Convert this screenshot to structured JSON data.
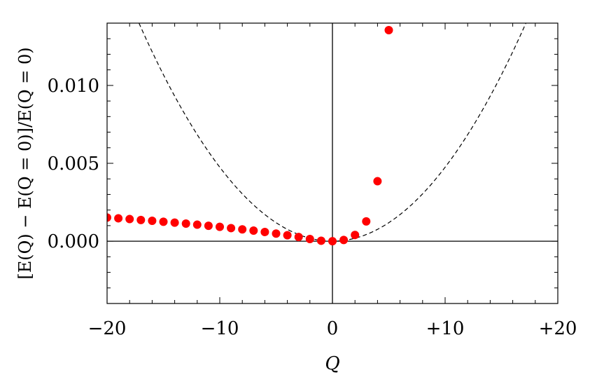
{
  "chart_data": {
    "type": "scatter",
    "xlabel": "Q",
    "ylabel": "[E(Q) − E(Q = 0)]/E(Q = 0)",
    "xlim": [
      -20,
      20
    ],
    "ylim": [
      -0.004,
      0.014
    ],
    "x_ticks": [
      -20,
      -10,
      0,
      10,
      20
    ],
    "x_tick_labels": [
      "−20",
      "−10",
      "0",
      "+10",
      "+20"
    ],
    "y_ticks": [
      0.0,
      0.005,
      0.01
    ],
    "y_tick_labels": [
      "0.000",
      "0.005",
      "0.010"
    ],
    "grid": false,
    "reference_lines": {
      "x": 0,
      "y": 0
    },
    "series": [
      {
        "kind": "points",
        "color": "#ff0000",
        "x": [
          -20,
          -19,
          -18,
          -17,
          -16,
          -15,
          -14,
          -13,
          -12,
          -11,
          -10,
          -9,
          -8,
          -7,
          -6,
          -5,
          -4,
          -3,
          -2,
          -1,
          0,
          1,
          2,
          3,
          4,
          5
        ],
        "y": [
          0.00152,
          0.00147,
          0.00142,
          0.00136,
          0.00131,
          0.00125,
          0.00119,
          0.00113,
          0.00106,
          0.00099,
          0.00092,
          0.00084,
          0.00076,
          0.00068,
          0.00059,
          0.00049,
          0.00038,
          0.00027,
          0.00014,
          3e-05,
          0.0,
          8e-05,
          0.0004,
          0.00127,
          0.00385,
          0.01355
        ]
      },
      {
        "kind": "line",
        "style": "dashed",
        "color": "#000000",
        "function": "y = 4.75e-5 * Q^2",
        "coefficient": 4.75e-05
      }
    ]
  }
}
